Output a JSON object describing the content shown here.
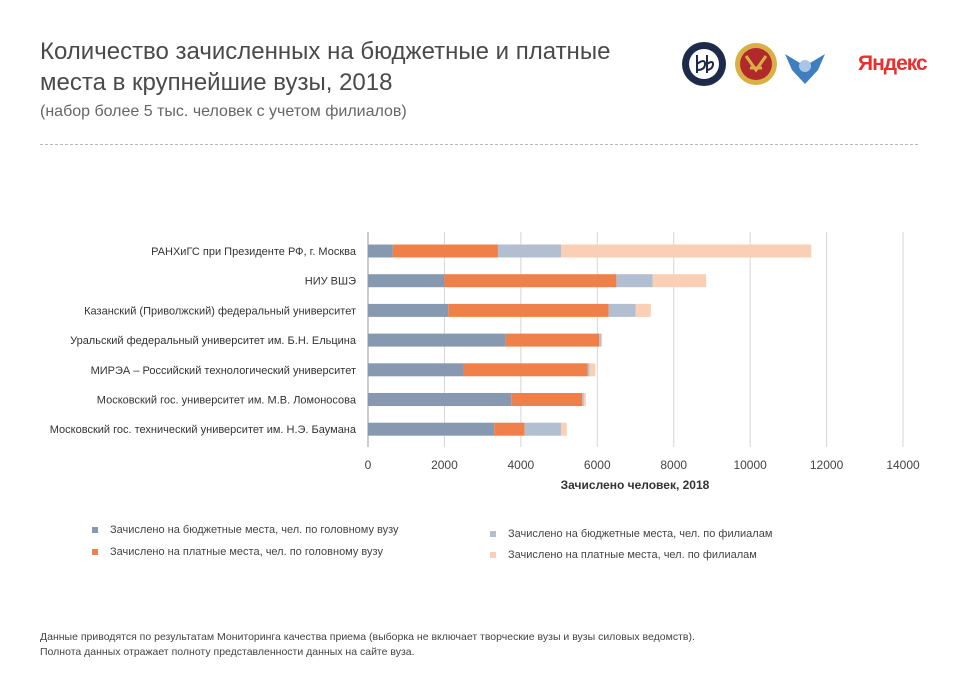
{
  "header": {
    "title": "Количество зачисленных на бюджетные и платные места в крупнейшие вузы, 2018",
    "subtitle": "(набор более 5 тыс. человек с учетом филиалов)",
    "logo_yandex": "Яндекс"
  },
  "footnote": {
    "line1": "Данные приводятся по результатам Мониторинга качества приема (выборка не включает творческие вузы и вузы силовых ведомств).",
    "line2": "Полнота данных отражает полноту представленности данных на сайте вуза."
  },
  "colors": {
    "budget_main": "#8799b1",
    "paid_main": "#f0804a",
    "budget_branch": "#b2bfd0",
    "paid_branch": "#f9cfb5"
  },
  "chart_data": {
    "type": "bar",
    "orientation": "horizontal",
    "stacked": true,
    "categories": [
      "РАНХиГС при Президенте РФ, г. Москва",
      "НИУ ВШЭ",
      "Казанский (Приволжский) федеральный университет",
      "Уральский федеральный университет им. Б.Н. Ельцина",
      "МИРЭА  – Российский технологический университет",
      "Московский гос. университет им. М.В. Ломоносова",
      "Московский гос. технический университет им. Н.Э. Баумана"
    ],
    "series": [
      {
        "name": "Зачислено на бюджетные места, чел. по головному вузу",
        "values": [
          650,
          2000,
          2100,
          3600,
          2500,
          3750,
          3300
        ]
      },
      {
        "name": "Зачислено на платные места, чел. по головному вузу",
        "values": [
          2750,
          4500,
          4200,
          2450,
          3250,
          1850,
          800
        ]
      },
      {
        "name": "Зачислено на бюджетные места, чел. по филиалам",
        "values": [
          1650,
          950,
          700,
          50,
          50,
          50,
          950
        ]
      },
      {
        "name": "Зачислено на платные места, чел. по филиалам",
        "values": [
          6550,
          1400,
          400,
          30,
          150,
          50,
          150
        ]
      }
    ],
    "xlabel": "Зачислено человек, 2018",
    "xlim": [
      0,
      14000
    ],
    "xticks": [
      "0",
      "2000",
      "4000",
      "6000",
      "8000",
      "10000",
      "12000",
      "14000"
    ],
    "grid": true,
    "legend_position": "bottom"
  }
}
